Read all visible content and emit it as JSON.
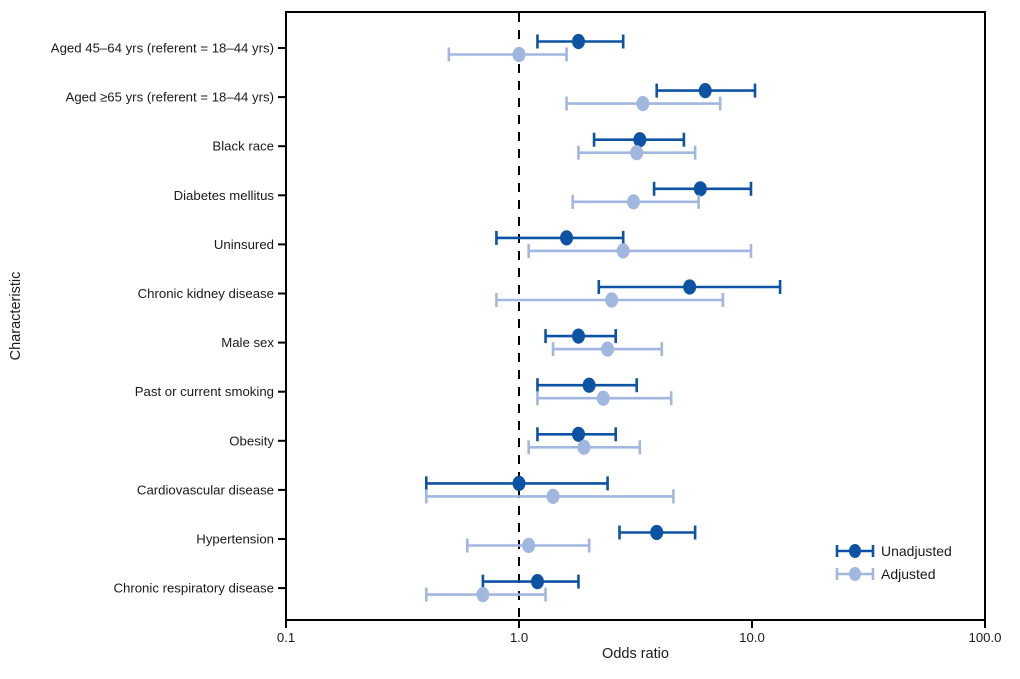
{
  "figure": {
    "type_description": "forest plot of unadjusted and adjusted odds ratios with 95% confidence intervals",
    "background_color": "#ffffff",
    "axis_color": "#000000",
    "reference_line_value": 1.0
  },
  "chart_data": {
    "type": "scatter",
    "variant": "forest-plot-errorbar",
    "title": "",
    "xlabel": "Odds ratio",
    "ylabel": "Characteristic",
    "xscale": "log",
    "xlim": [
      0.1,
      100
    ],
    "x_ticks": [
      {
        "value": 0.1,
        "label": "0.1"
      },
      {
        "value": 1.0,
        "label": "1.0"
      },
      {
        "value": 10.0,
        "label": "10.0"
      },
      {
        "value": 100.0,
        "label": "100.0"
      }
    ],
    "reference_line": 1.0,
    "grid": false,
    "legend_position": "lower-right-inside",
    "categories": [
      "Aged 45–64 yrs (referent = 18–44 yrs)",
      "Aged ≥65 yrs (referent = 18–44 yrs)",
      "Black race",
      "Diabetes mellitus",
      "Uninsured",
      "Chronic kidney disease",
      "Male sex",
      "Past or current smoking",
      "Obesity",
      "Cardiovascular disease",
      "Hypertension",
      "Chronic respiratory disease"
    ],
    "series": [
      {
        "name": "Unadjusted",
        "color": "#0d53a4",
        "values": [
          {
            "or": 1.8,
            "ci_low": 1.2,
            "ci_high": 2.8
          },
          {
            "or": 6.3,
            "ci_low": 3.9,
            "ci_high": 10.3
          },
          {
            "or": 3.3,
            "ci_low": 2.1,
            "ci_high": 5.1
          },
          {
            "or": 6.0,
            "ci_low": 3.8,
            "ci_high": 9.9
          },
          {
            "or": 1.6,
            "ci_low": 0.8,
            "ci_high": 2.8
          },
          {
            "or": 5.4,
            "ci_low": 2.2,
            "ci_high": 13.2
          },
          {
            "or": 1.8,
            "ci_low": 1.3,
            "ci_high": 2.6
          },
          {
            "or": 2.0,
            "ci_low": 1.2,
            "ci_high": 3.2
          },
          {
            "or": 1.8,
            "ci_low": 1.2,
            "ci_high": 2.6
          },
          {
            "or": 1.0,
            "ci_low": 0.4,
            "ci_high": 2.4
          },
          {
            "or": 3.9,
            "ci_low": 2.7,
            "ci_high": 5.7
          },
          {
            "or": 1.2,
            "ci_low": 0.7,
            "ci_high": 1.8
          }
        ]
      },
      {
        "name": "Adjusted",
        "color": "#a2b7df",
        "values": [
          {
            "or": 1.0,
            "ci_low": 0.5,
            "ci_high": 1.6
          },
          {
            "or": 3.4,
            "ci_low": 1.6,
            "ci_high": 7.3
          },
          {
            "or": 3.2,
            "ci_low": 1.8,
            "ci_high": 5.7
          },
          {
            "or": 3.1,
            "ci_low": 1.7,
            "ci_high": 5.9
          },
          {
            "or": 2.8,
            "ci_low": 1.1,
            "ci_high": 9.9
          },
          {
            "or": 2.5,
            "ci_low": 0.8,
            "ci_high": 7.5
          },
          {
            "or": 2.4,
            "ci_low": 1.4,
            "ci_high": 4.1
          },
          {
            "or": 2.3,
            "ci_low": 1.2,
            "ci_high": 4.5
          },
          {
            "or": 1.9,
            "ci_low": 1.1,
            "ci_high": 3.3
          },
          {
            "or": 1.4,
            "ci_low": 0.4,
            "ci_high": 4.6
          },
          {
            "or": 1.1,
            "ci_low": 0.6,
            "ci_high": 2.0
          },
          {
            "or": 0.7,
            "ci_low": 0.4,
            "ci_high": 1.3
          }
        ]
      }
    ],
    "legend": [
      {
        "label": "Unadjusted",
        "color": "#0d53a4"
      },
      {
        "label": "Adjusted",
        "color": "#a2b7df"
      }
    ]
  }
}
